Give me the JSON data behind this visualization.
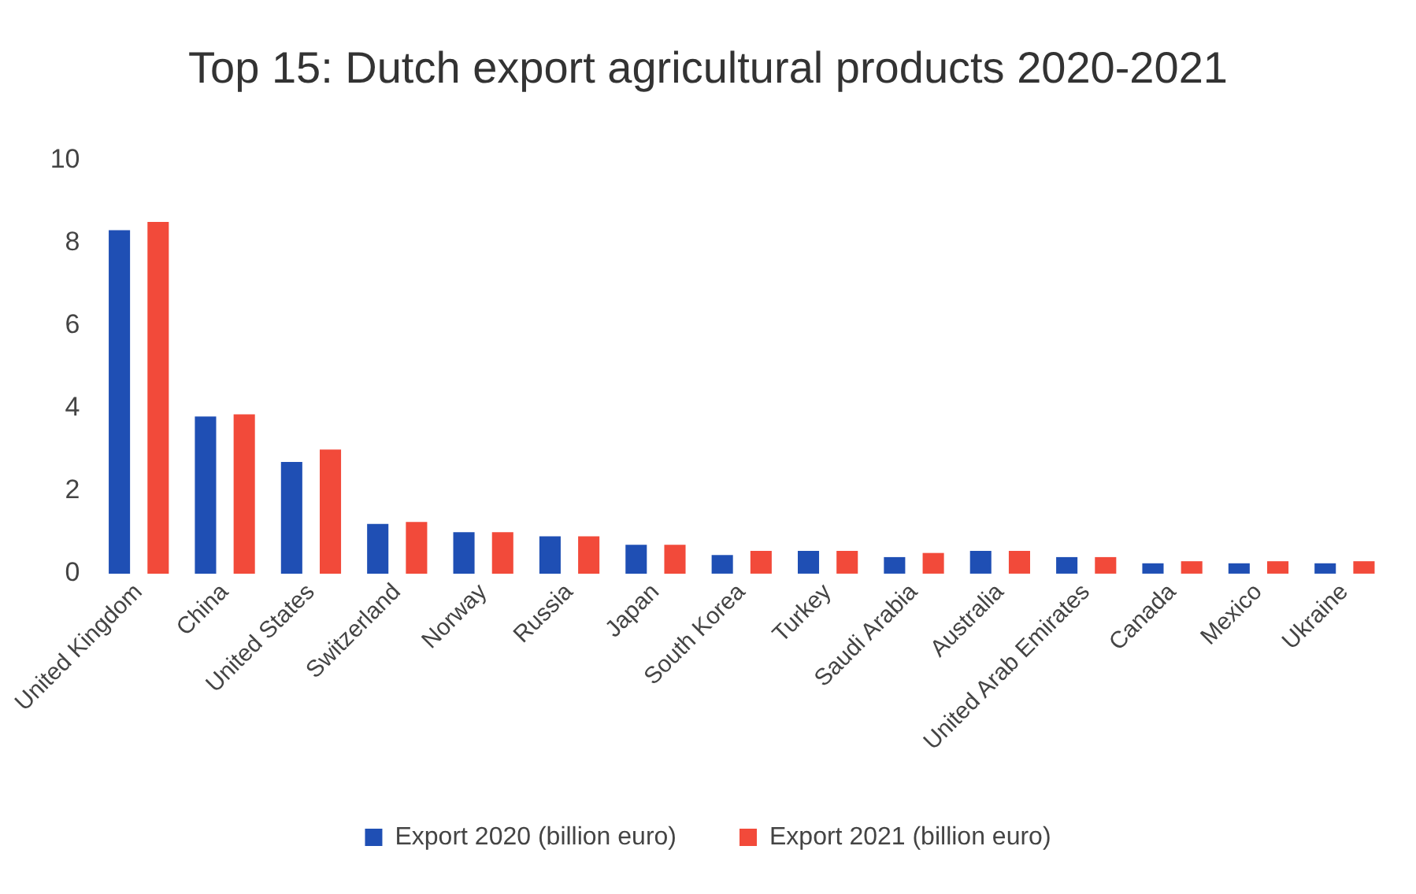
{
  "chart_data": {
    "type": "bar",
    "title": "Top 15: Dutch export agricultural products 2020-2021",
    "categories": [
      "United Kingdom",
      "China",
      "United States",
      "Switzerland",
      "Norway",
      "Russia",
      "Japan",
      "South Korea",
      "Turkey",
      "Saudi Arabia",
      "Australia",
      "United Arab Emirates",
      "Canada",
      "Mexico",
      "Ukraine"
    ],
    "series": [
      {
        "name": "Export 2020 (billion euro)",
        "color": "#1f4fb4",
        "values": [
          8.3,
          3.8,
          2.7,
          1.2,
          1.0,
          0.9,
          0.7,
          0.45,
          0.55,
          0.4,
          0.55,
          0.4,
          0.25,
          0.25,
          0.25
        ]
      },
      {
        "name": "Export 2021 (billion euro)",
        "color": "#f24a3a",
        "values": [
          8.5,
          3.85,
          3.0,
          1.25,
          1.0,
          0.9,
          0.7,
          0.55,
          0.55,
          0.5,
          0.55,
          0.4,
          0.3,
          0.3,
          0.3
        ]
      }
    ],
    "ylim": [
      0,
      10
    ],
    "yticks": [
      0,
      2,
      4,
      6,
      8,
      10
    ],
    "grid": false,
    "legend": "bottom"
  }
}
